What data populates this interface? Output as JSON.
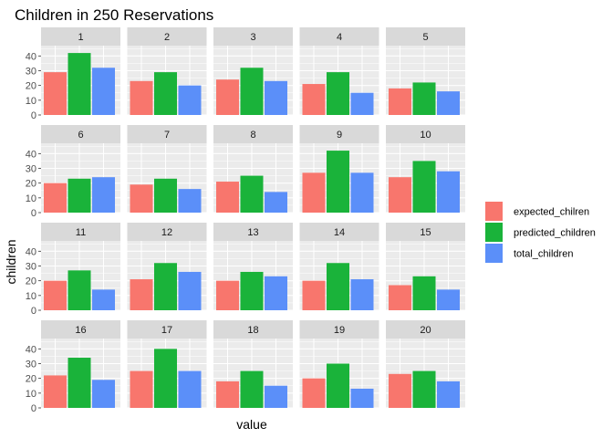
{
  "chart_data": {
    "type": "bar",
    "title": "Children in 250 Reservations",
    "xlabel": "value",
    "ylabel": "children",
    "ylim": [
      0,
      47
    ],
    "yticks": [
      0,
      10,
      20,
      30,
      40
    ],
    "grid": true,
    "legend_position": "right",
    "colors": {
      "expected_chilren": "#F8766D",
      "predicted_children": "#1AB33A",
      "total_children": "#5B8FF9",
      "panel_bg": "#EBEBEB",
      "strip_bg": "#D9D9D9",
      "grid_major": "#FFFFFF"
    },
    "series_names": [
      "expected_chilren",
      "predicted_children",
      "total_children"
    ],
    "panels": [
      {
        "label": "1",
        "values": [
          29,
          42,
          32
        ]
      },
      {
        "label": "2",
        "values": [
          23,
          29,
          20
        ]
      },
      {
        "label": "3",
        "values": [
          24,
          32,
          23
        ]
      },
      {
        "label": "4",
        "values": [
          21,
          29,
          15
        ]
      },
      {
        "label": "5",
        "values": [
          18,
          22,
          16
        ]
      },
      {
        "label": "6",
        "values": [
          20,
          23,
          24
        ]
      },
      {
        "label": "7",
        "values": [
          19,
          23,
          16
        ]
      },
      {
        "label": "8",
        "values": [
          21,
          25,
          14
        ]
      },
      {
        "label": "9",
        "values": [
          27,
          42,
          27
        ]
      },
      {
        "label": "10",
        "values": [
          24,
          35,
          28
        ]
      },
      {
        "label": "11",
        "values": [
          20,
          27,
          14
        ]
      },
      {
        "label": "12",
        "values": [
          21,
          32,
          26
        ]
      },
      {
        "label": "13",
        "values": [
          20,
          26,
          23
        ]
      },
      {
        "label": "14",
        "values": [
          20,
          32,
          21
        ]
      },
      {
        "label": "15",
        "values": [
          17,
          23,
          14
        ]
      },
      {
        "label": "16",
        "values": [
          22,
          34,
          19
        ]
      },
      {
        "label": "17",
        "values": [
          25,
          40,
          25
        ]
      },
      {
        "label": "18",
        "values": [
          18,
          25,
          15
        ]
      },
      {
        "label": "19",
        "values": [
          20,
          30,
          13
        ]
      },
      {
        "label": "20",
        "values": [
          23,
          25,
          18
        ]
      }
    ]
  }
}
